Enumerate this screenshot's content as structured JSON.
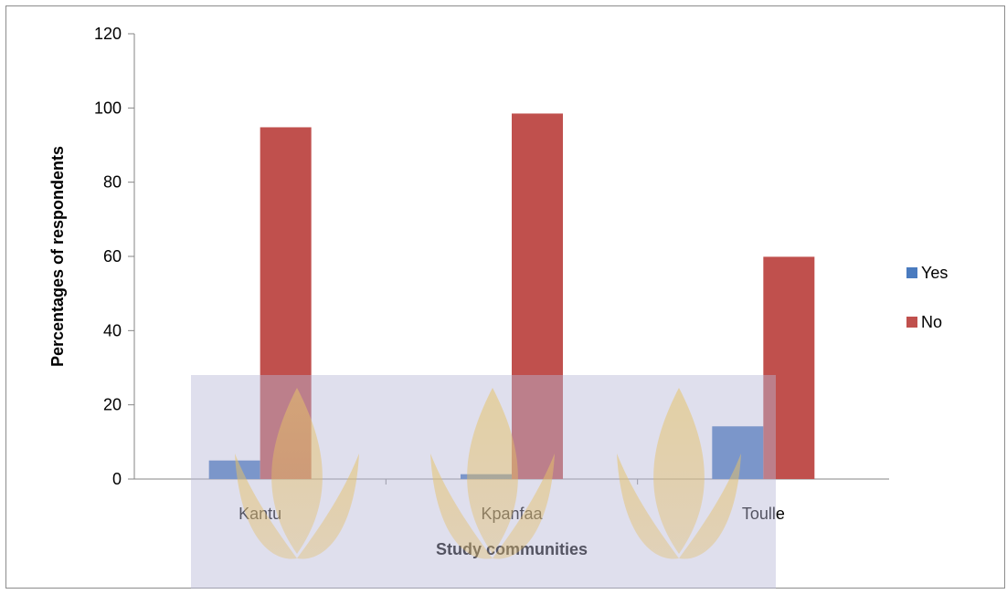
{
  "chart_data": {
    "type": "bar",
    "title": "",
    "xlabel": "Study communities",
    "ylabel": "Percentages of respondents",
    "categories": [
      "Kantu",
      "Kpanfaa",
      "Toulle"
    ],
    "series": [
      {
        "name": "Yes",
        "color": "#4a7bbf",
        "values": [
          5,
          1.3,
          14.2
        ]
      },
      {
        "name": "No",
        "color": "#c0504d",
        "values": [
          94.8,
          98.5,
          59.9
        ]
      }
    ],
    "ylim": [
      0,
      120
    ],
    "yticks": [
      "0",
      "20",
      "40",
      "60",
      "80",
      "100",
      "120"
    ],
    "grid": false,
    "legend_position": "right"
  }
}
